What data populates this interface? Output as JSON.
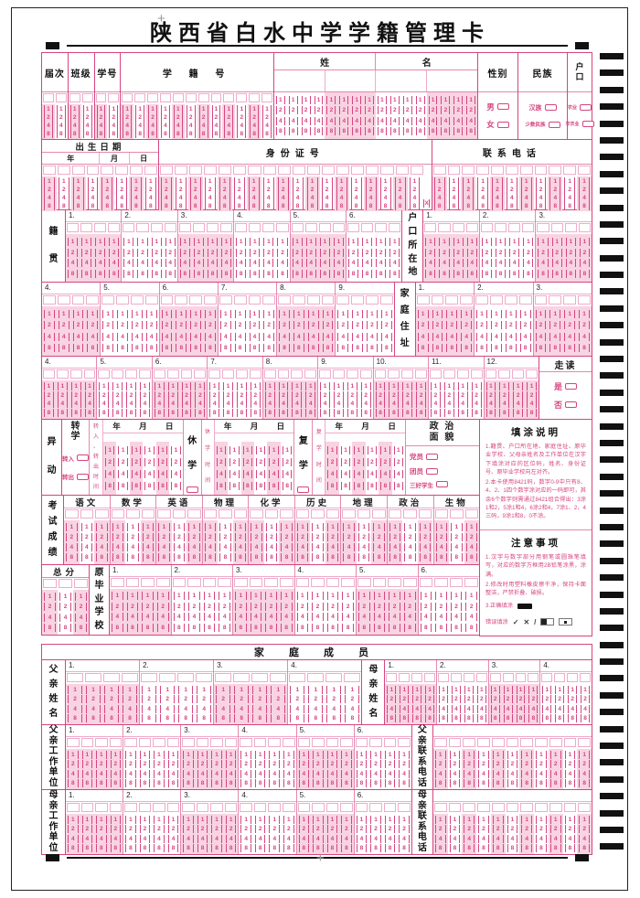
{
  "title": "陕西省白水中学学籍管理卡",
  "colors": {
    "pink": "#d6457f",
    "line": "#e489ae",
    "shade": "#f8d4e2",
    "black": "#1c1c1c"
  },
  "bubble_digits": [
    "1",
    "2",
    "4",
    "8"
  ],
  "headerA": {
    "jieci": "届次",
    "banji": "班级",
    "xuehao": "学号",
    "xuejihao": "学 籍 号",
    "xing": "姓",
    "ming": "名",
    "xingbie": "性别",
    "minzu": "民族",
    "hukou": "户口",
    "gender_options": [
      "男",
      "女"
    ],
    "ethnic_options": [
      "汉族",
      "少数民族"
    ],
    "hukou_options": [
      "农业",
      "非农业"
    ]
  },
  "row2": {
    "birth": "出生日期",
    "year": "年",
    "month": "月",
    "day": "日",
    "id": "身份证号",
    "phone": "联系电话",
    "x_label": "X"
  },
  "jiguan": {
    "label": "籍贯",
    "groups": [
      "1.",
      "2.",
      "3.",
      "4.",
      "5.",
      "6."
    ]
  },
  "hukou_loc": {
    "label": "户口所在地",
    "groups_row1": [
      "1.",
      "2.",
      "3."
    ],
    "groups_row2": [
      "4.",
      "5.",
      "6.",
      "7.",
      "8.",
      "9."
    ]
  },
  "address": {
    "label": "家庭住址",
    "groups_row1": [
      "1.",
      "2.",
      "3."
    ],
    "groups_row2": [
      "4.",
      "5.",
      "6.",
      "7.",
      "8.",
      "9.",
      "10.",
      "11.",
      "12."
    ]
  },
  "zoudu": {
    "label": "走读",
    "options": [
      "是",
      "否"
    ]
  },
  "yidong": {
    "label": "异动",
    "zhuanxue": "转学",
    "zhuanru": "转入",
    "zhuanchu": "转出",
    "zhuan_time": "转入、转出时间",
    "xiuxue": "休学",
    "xiuxue_time": "休学时间",
    "fuxue": "复学",
    "fuxue_time": "复学时间",
    "ymd": [
      "年",
      "月",
      "日"
    ],
    "zhengzhi_line1": "政 治",
    "zhengzhi_line2": "面 貌",
    "political_options": [
      "党员",
      "团员",
      "三好学生"
    ]
  },
  "fill": {
    "title": "填涂说明",
    "p1": "1.籍贯、户口所在地、家庭住址、原毕业学校、父母亲姓名及工作单位在汉字下填涂对应的区位码，姓名、身份证号、原毕业学校向左对齐。",
    "p2": "2.本卡使用8421码，数字0-9中只有8、4、2、1四个数字涂对应的一码即可，其余6个数字则需通过8421组合得出：3涂1和2，5涂1和4，6涂2和4，7涂1、2、4三码，9涂1和8，0不涂。"
  },
  "scores": {
    "label": "考试成绩",
    "subjects": [
      "语文",
      "数学",
      "英语",
      "物理",
      "化学",
      "历史",
      "地理",
      "政治",
      "生物"
    ],
    "total_label": "总分"
  },
  "school": {
    "label": "原毕业学校",
    "groups": [
      "1.",
      "2.",
      "3.",
      "4.",
      "5.",
      "6."
    ]
  },
  "notes": {
    "title": "注意事项",
    "l1": "1.汉字与数字部分用钢笔或圆珠笔填写，对应的数字方框用2B铅笔涂黑，涂满。",
    "l2": "2.修改时用塑料橡皮擦干净，保持卡面整洁，严禁折叠、破损。",
    "l3": "3.正确填涂",
    "l4": "错误填涂",
    "m1": "✓",
    "m2": "✕",
    "m3": "/"
  },
  "family": {
    "title": "家 庭 成 员",
    "father_name": {
      "label": "父亲姓名",
      "groups": [
        "1.",
        "2.",
        "3.",
        "4."
      ]
    },
    "mother_name": {
      "label": "母亲姓名",
      "groups": [
        "1.",
        "2.",
        "3.",
        "4."
      ]
    },
    "father_work": {
      "label": "父亲工作单位",
      "groups": [
        "1.",
        "2.",
        "3.",
        "4.",
        "5.",
        "6."
      ]
    },
    "father_phone": {
      "label": "父亲联系电话"
    },
    "mother_work": {
      "label": "母亲工作单位",
      "groups": [
        "1.",
        "2.",
        "3.",
        "4.",
        "5.",
        "6."
      ]
    },
    "mother_phone": {
      "label": "母亲联系电话"
    }
  },
  "layout": {
    "jieci_cols": 2,
    "banji_cols": 2,
    "xuehao_cols": 2,
    "xuejihao_cols": 12,
    "name_groups": 4,
    "birth_cols": 8,
    "id_cols": 18,
    "phone_cols": 11,
    "ymd_block_cols": 6,
    "subject_cols": 3,
    "total_cols": 3,
    "group_cols": 4,
    "timing_marks": 48
  }
}
